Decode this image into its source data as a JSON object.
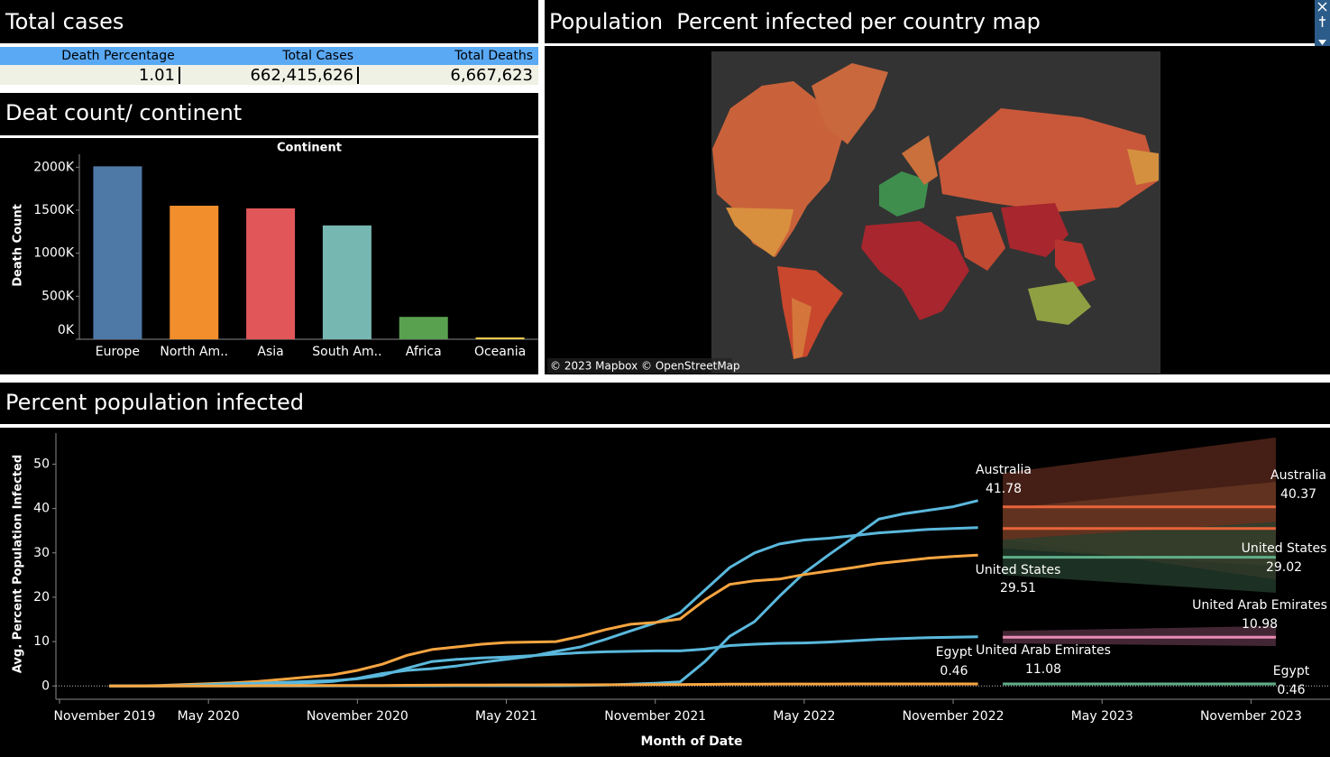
{
  "panels": {
    "total_cases": "Total cases",
    "death_by_continent": "Deat count/ continent",
    "map": "Population  Percent infected per country map",
    "percent_infected": "Percent population infected"
  },
  "summary_table": {
    "headers": [
      "Death Percentage",
      "Total Cases",
      "Total Deaths"
    ],
    "rows": [
      [
        "1.01",
        "662,415,626",
        "6,667,623"
      ]
    ]
  },
  "map": {
    "attribution": "© 2023 Mapbox © OpenStreetMap"
  },
  "chart_data": [
    {
      "type": "bar",
      "title": "Continent",
      "y_label": "Death Count",
      "categories": [
        "Europe",
        "North Am..",
        "Asia",
        "South Am..",
        "Africa",
        "Oceania"
      ],
      "values": [
        2010000,
        1552000,
        1521000,
        1323000,
        260000,
        21000
      ],
      "colors": [
        "#4e79a7",
        "#f28e2b",
        "#e15759",
        "#76b7b2",
        "#59a14f",
        "#edc948"
      ],
      "ylim": [
        0,
        2150000
      ],
      "yticks": [
        {
          "value": 0,
          "label": "0K"
        },
        {
          "value": 500000,
          "label": "500K"
        },
        {
          "value": 1000000,
          "label": "1000K"
        },
        {
          "value": 1500000,
          "label": "1500K"
        },
        {
          "value": 2000000,
          "label": "2000K"
        }
      ]
    },
    {
      "type": "line",
      "x_label": "Month of Date",
      "y_label": "Avg. Percent Population Infected",
      "xlim": [
        "2019-11",
        "2024-02"
      ],
      "ylim": [
        -3,
        57
      ],
      "xticks": [
        {
          "value": "2019-11",
          "label": "November 2019"
        },
        {
          "value": "2020-05",
          "label": "May 2020"
        },
        {
          "value": "2020-11",
          "label": "November 2020"
        },
        {
          "value": "2021-05",
          "label": "May 2021"
        },
        {
          "value": "2021-11",
          "label": "November 2021"
        },
        {
          "value": "2022-05",
          "label": "May 2022"
        },
        {
          "value": "2022-11",
          "label": "November 2022"
        },
        {
          "value": "2023-05",
          "label": "May 2023"
        },
        {
          "value": "2023-11",
          "label": "November 2023"
        }
      ],
      "yticks": [
        0,
        10,
        20,
        30,
        40,
        50
      ],
      "x": [
        "2020-01",
        "2020-02",
        "2020-03",
        "2020-04",
        "2020-05",
        "2020-06",
        "2020-07",
        "2020-08",
        "2020-09",
        "2020-10",
        "2020-11",
        "2020-12",
        "2021-01",
        "2021-02",
        "2021-03",
        "2021-04",
        "2021-05",
        "2021-06",
        "2021-07",
        "2021-08",
        "2021-09",
        "2021-10",
        "2021-11",
        "2021-12",
        "2022-01",
        "2022-02",
        "2022-03",
        "2022-04",
        "2022-05",
        "2022-06",
        "2022-07",
        "2022-08",
        "2022-09",
        "2022-10",
        "2022-11",
        "2022-12"
      ],
      "series": [
        {
          "name": "Australia",
          "color": "#5ab8dc",
          "values": [
            0,
            0,
            0,
            0,
            0,
            0,
            0.01,
            0.02,
            0.02,
            0.03,
            0.03,
            0.04,
            0.04,
            0.04,
            0.05,
            0.05,
            0.05,
            0.05,
            0.06,
            0.1,
            0.2,
            0.4,
            0.6,
            0.9,
            5.5,
            11.2,
            14.5,
            20.2,
            25.5,
            29.6,
            33.5,
            37.6,
            38.8,
            39.6,
            40.4,
            41.78
          ]
        },
        {
          "color": "#5ab8dc",
          "values": [
            0,
            0,
            0,
            0.1,
            0.2,
            0.3,
            0.4,
            0.5,
            0.7,
            1.0,
            1.7,
            2.8,
            3.5,
            3.9,
            4.5,
            5.3,
            6.0,
            6.7,
            7.8,
            8.8,
            10.5,
            12.4,
            14.2,
            16.5,
            21.6,
            26.7,
            30.0,
            32.0,
            32.9,
            33.3,
            33.9,
            34.5,
            34.9,
            35.3,
            35.5,
            35.7
          ]
        },
        {
          "name": "United States",
          "color": "#f7a540",
          "values": [
            0,
            0,
            0.1,
            0.3,
            0.5,
            0.7,
            1.0,
            1.5,
            2.0,
            2.5,
            3.5,
            4.9,
            6.9,
            8.2,
            8.8,
            9.4,
            9.8,
            9.9,
            10.0,
            11.2,
            12.7,
            13.9,
            14.3,
            15.1,
            19.4,
            22.9,
            23.7,
            24.1,
            25.1,
            25.9,
            26.7,
            27.6,
            28.2,
            28.8,
            29.2,
            29.51
          ]
        },
        {
          "name": "United Arab Emirates",
          "color": "#5ab8dc",
          "values": [
            0,
            0,
            0,
            0.1,
            0.3,
            0.5,
            0.6,
            0.8,
            1.0,
            1.2,
            1.6,
            2.4,
            4.0,
            5.5,
            6.0,
            6.3,
            6.5,
            6.8,
            7.2,
            7.5,
            7.7,
            7.8,
            7.9,
            7.9,
            8.3,
            9.1,
            9.4,
            9.6,
            9.7,
            9.9,
            10.2,
            10.5,
            10.7,
            10.9,
            11.0,
            11.08
          ]
        },
        {
          "name": "Egypt",
          "color": "#f7a540",
          "values": [
            0,
            0,
            0,
            0,
            0,
            0.01,
            0.05,
            0.08,
            0.09,
            0.1,
            0.11,
            0.12,
            0.15,
            0.17,
            0.19,
            0.21,
            0.23,
            0.24,
            0.25,
            0.26,
            0.27,
            0.28,
            0.3,
            0.32,
            0.36,
            0.4,
            0.42,
            0.43,
            0.44,
            0.44,
            0.45,
            0.45,
            0.45,
            0.46,
            0.46,
            0.46
          ]
        },
        {
          "name": "Australia",
          "color": "#e8643a",
          "band_color": "#5c2a1e",
          "x": [
            "2023-01",
            "2023-12"
          ],
          "values": [
            40.37,
            40.37
          ],
          "lower": [
            33,
            24
          ],
          "upper": [
            48,
            56
          ]
        },
        {
          "color": "#e8643a",
          "band_color": "#6b3a23",
          "x": [
            "2023-01",
            "2023-12"
          ],
          "values": [
            35.5,
            35.5
          ],
          "lower": [
            31,
            27
          ],
          "upper": [
            40,
            46
          ]
        },
        {
          "name": "United States",
          "color": "#5fae88",
          "band_color": "#26402f",
          "x": [
            "2023-01",
            "2023-12"
          ],
          "values": [
            29.02,
            29.02
          ],
          "lower": [
            25,
            21
          ],
          "upper": [
            33,
            37
          ]
        },
        {
          "name": "United Arab Emirates",
          "color": "#e98ab4",
          "band_color": "#5a3346",
          "x": [
            "2023-01",
            "2023-12"
          ],
          "values": [
            10.98,
            10.98
          ],
          "lower": [
            9.6,
            9
          ],
          "upper": [
            12.4,
            13.5
          ]
        },
        {
          "name": "Egypt",
          "color": "#5fae88",
          "band_color": "#26402f",
          "x": [
            "2023-01",
            "2023-12"
          ],
          "values": [
            0.46,
            0.46
          ],
          "lower": [
            0.2,
            0.1
          ],
          "upper": [
            0.7,
            0.8
          ]
        }
      ]
    }
  ]
}
